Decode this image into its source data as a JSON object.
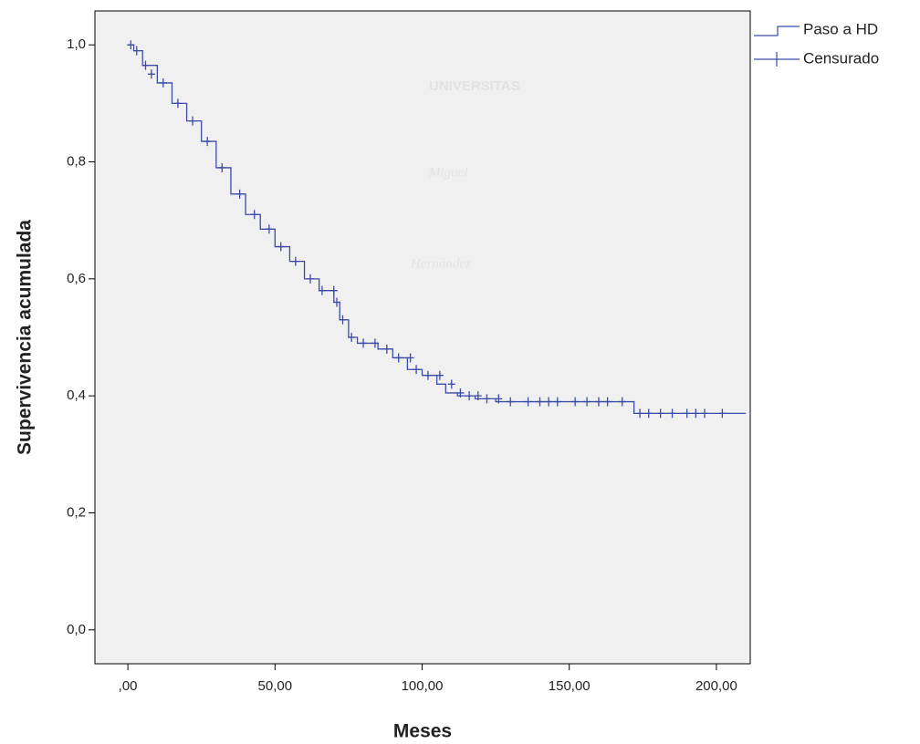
{
  "chart_data": {
    "type": "survival",
    "x_label": "Meses",
    "y_label": "Supervivencia acumulada",
    "watermark": [
      "UNIVERSITAS",
      "Miguel",
      "Hernández"
    ],
    "xlim": [
      -11.2,
      211.5
    ],
    "ylim": [
      -0.058,
      1.058
    ],
    "xticks": [
      {
        "value": 0,
        "label": ",00"
      },
      {
        "value": 50,
        "label": "50,00"
      },
      {
        "value": 100,
        "label": "100,00"
      },
      {
        "value": 150,
        "label": "150,00"
      },
      {
        "value": 200,
        "label": "200,00"
      }
    ],
    "yticks": [
      {
        "value": 0,
        "label": "0,0"
      },
      {
        "value": 0.2,
        "label": "0,2"
      },
      {
        "value": 0.4,
        "label": "0,4"
      },
      {
        "value": 0.6,
        "label": "0,6"
      },
      {
        "value": 0.8,
        "label": "0,8"
      },
      {
        "value": 1.0,
        "label": "1,0"
      }
    ],
    "grid": false,
    "legend": "outside-top-right",
    "series": [
      {
        "name": "Paso a HD",
        "kind": "step",
        "color": "#3b4ba8",
        "x": [
          0,
          2,
          5,
          10,
          15,
          20,
          25,
          30,
          35,
          40,
          45,
          50,
          55,
          60,
          65,
          70,
          72,
          75,
          78,
          85,
          90,
          95,
          100,
          105,
          108,
          112,
          118,
          125,
          172,
          210
        ],
        "values": [
          1.0,
          0.99,
          0.965,
          0.935,
          0.9,
          0.87,
          0.835,
          0.79,
          0.745,
          0.71,
          0.685,
          0.655,
          0.63,
          0.6,
          0.58,
          0.56,
          0.53,
          0.5,
          0.49,
          0.48,
          0.465,
          0.445,
          0.435,
          0.42,
          0.405,
          0.4,
          0.395,
          0.39,
          0.37,
          0.37
        ]
      },
      {
        "name": "Censurado",
        "kind": "censor",
        "color": "#3b4ba8",
        "x": [
          1,
          3,
          6,
          8,
          12,
          17,
          22,
          27,
          32,
          38,
          43,
          48,
          52,
          57,
          62,
          66,
          70,
          71,
          73,
          76,
          80,
          84,
          88,
          92,
          96,
          98,
          102,
          106,
          110,
          113,
          116,
          119,
          122,
          126,
          130,
          136,
          140,
          143,
          146,
          152,
          156,
          160,
          163,
          168,
          174,
          177,
          181,
          185,
          190,
          193,
          196,
          202
        ],
        "values": [
          1.0,
          0.99,
          0.965,
          0.95,
          0.935,
          0.9,
          0.87,
          0.835,
          0.79,
          0.745,
          0.71,
          0.685,
          0.655,
          0.63,
          0.6,
          0.58,
          0.58,
          0.56,
          0.53,
          0.5,
          0.49,
          0.49,
          0.48,
          0.465,
          0.465,
          0.445,
          0.435,
          0.435,
          0.42,
          0.405,
          0.4,
          0.4,
          0.395,
          0.395,
          0.39,
          0.39,
          0.39,
          0.39,
          0.39,
          0.39,
          0.39,
          0.39,
          0.39,
          0.39,
          0.37,
          0.37,
          0.37,
          0.37,
          0.37,
          0.37,
          0.37,
          0.37
        ]
      }
    ]
  }
}
